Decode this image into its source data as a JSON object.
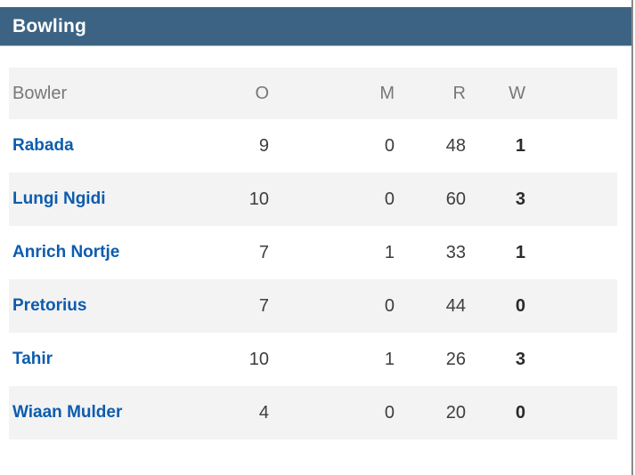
{
  "section": {
    "title": "Bowling"
  },
  "table": {
    "columns": [
      {
        "key": "bowler",
        "label": "Bowler"
      },
      {
        "key": "o",
        "label": "O"
      },
      {
        "key": "m",
        "label": "M"
      },
      {
        "key": "r",
        "label": "R"
      },
      {
        "key": "w",
        "label": "W"
      }
    ],
    "rows": [
      {
        "bowler": "Rabada",
        "o": "9",
        "m": "0",
        "r": "48",
        "w": "1"
      },
      {
        "bowler": "Lungi Ngidi",
        "o": "10",
        "m": "0",
        "r": "60",
        "w": "3"
      },
      {
        "bowler": "Anrich Nortje",
        "o": "7",
        "m": "1",
        "r": "33",
        "w": "1"
      },
      {
        "bowler": "Pretorius",
        "o": "7",
        "m": "0",
        "r": "44",
        "w": "0"
      },
      {
        "bowler": "Tahir",
        "o": "10",
        "m": "1",
        "r": "26",
        "w": "3"
      },
      {
        "bowler": "Wiaan Mulder",
        "o": "4",
        "m": "0",
        "r": "20",
        "w": "0"
      }
    ]
  },
  "colors": {
    "bar_bg": "#3c6383",
    "bar_text": "#ffffff",
    "name_blue": "#0d5cae",
    "num_gray": "#3d3d3d",
    "wicket_dark": "#2b2b2b",
    "header_gray": "#787878",
    "row_alt_bg": "#f3f3f3",
    "edge_border": "#8a8a8a"
  }
}
